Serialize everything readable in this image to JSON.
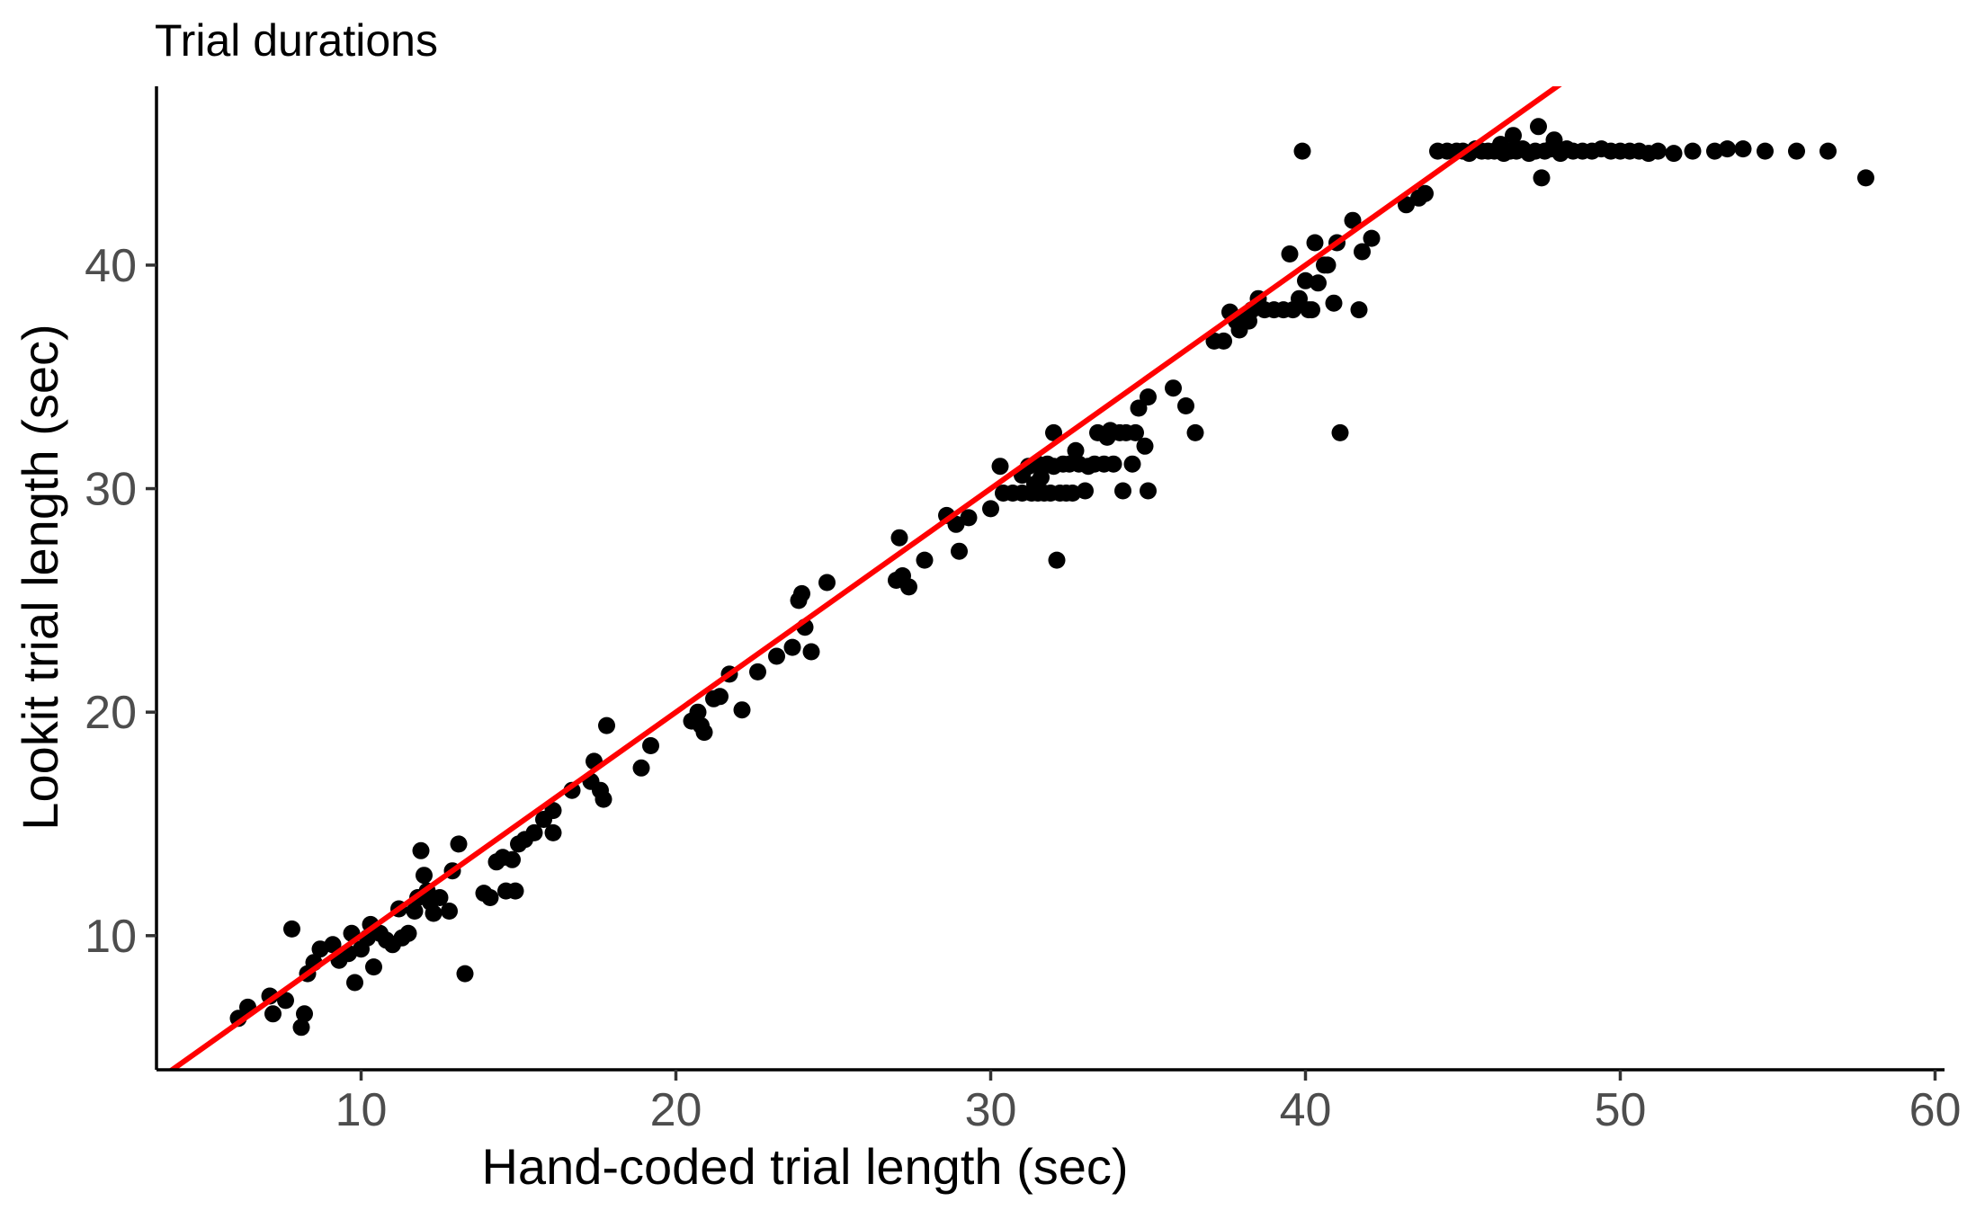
{
  "chart_data": {
    "type": "scatter",
    "title": "Trial durations",
    "xlabel": "Hand-coded trial length (sec)",
    "ylabel": "Lookit trial length (sec)",
    "xlim": [
      3.5,
      60.3
    ],
    "ylim": [
      4.0,
      48.0
    ],
    "xticks": [
      10,
      20,
      30,
      40,
      50,
      60
    ],
    "yticks": [
      10,
      20,
      30,
      40
    ],
    "grid": false,
    "legend": "none",
    "colors": {
      "points": "#000000",
      "fit_line": "#ff0000",
      "axis": "#000000",
      "tick_labels": "#4d4d4d"
    },
    "fit_line": {
      "x": [
        3.5,
        48.3
      ],
      "y": [
        3.5,
        48.3
      ]
    },
    "points": [
      [
        6.1,
        6.3
      ],
      [
        6.4,
        6.8
      ],
      [
        7.1,
        7.3
      ],
      [
        7.2,
        6.5
      ],
      [
        7.6,
        7.1
      ],
      [
        7.8,
        10.3
      ],
      [
        8.1,
        5.9
      ],
      [
        8.2,
        6.5
      ],
      [
        8.3,
        8.3
      ],
      [
        8.5,
        8.8
      ],
      [
        8.7,
        9.4
      ],
      [
        9.1,
        9.6
      ],
      [
        9.3,
        8.9
      ],
      [
        9.6,
        9.2
      ],
      [
        9.7,
        10.1
      ],
      [
        9.8,
        7.9
      ],
      [
        10.0,
        9.4
      ],
      [
        10.2,
        9.9
      ],
      [
        10.3,
        10.5
      ],
      [
        10.4,
        8.6
      ],
      [
        10.6,
        10.1
      ],
      [
        10.8,
        9.8
      ],
      [
        11.0,
        9.6
      ],
      [
        11.2,
        11.2
      ],
      [
        11.3,
        9.9
      ],
      [
        11.5,
        10.1
      ],
      [
        11.7,
        11.1
      ],
      [
        11.8,
        11.7
      ],
      [
        11.9,
        13.8
      ],
      [
        12.0,
        12.7
      ],
      [
        12.1,
        12.0
      ],
      [
        12.2,
        11.5
      ],
      [
        12.3,
        11.0
      ],
      [
        12.5,
        11.7
      ],
      [
        12.8,
        11.1
      ],
      [
        12.9,
        12.9
      ],
      [
        13.1,
        14.1
      ],
      [
        13.3,
        8.3
      ],
      [
        13.9,
        11.9
      ],
      [
        14.1,
        11.7
      ],
      [
        14.3,
        13.3
      ],
      [
        14.5,
        13.5
      ],
      [
        14.6,
        12.0
      ],
      [
        14.8,
        13.4
      ],
      [
        14.9,
        12.0
      ],
      [
        15.0,
        14.1
      ],
      [
        15.2,
        14.3
      ],
      [
        15.5,
        14.6
      ],
      [
        15.8,
        15.2
      ],
      [
        16.1,
        15.6
      ],
      [
        16.1,
        14.6
      ],
      [
        16.7,
        16.5
      ],
      [
        17.3,
        16.9
      ],
      [
        17.4,
        17.8
      ],
      [
        17.6,
        16.5
      ],
      [
        17.7,
        16.1
      ],
      [
        17.8,
        19.4
      ],
      [
        18.9,
        17.5
      ],
      [
        19.2,
        18.5
      ],
      [
        20.5,
        19.6
      ],
      [
        20.7,
        20.0
      ],
      [
        20.8,
        19.4
      ],
      [
        20.9,
        19.1
      ],
      [
        21.2,
        20.6
      ],
      [
        21.4,
        20.7
      ],
      [
        21.7,
        21.7
      ],
      [
        22.1,
        20.1
      ],
      [
        22.6,
        21.8
      ],
      [
        23.2,
        22.5
      ],
      [
        23.7,
        22.9
      ],
      [
        23.9,
        25.0
      ],
      [
        24.0,
        25.3
      ],
      [
        24.1,
        23.8
      ],
      [
        24.3,
        22.7
      ],
      [
        24.8,
        25.8
      ],
      [
        27.0,
        25.9
      ],
      [
        27.1,
        27.8
      ],
      [
        27.2,
        26.1
      ],
      [
        27.4,
        25.6
      ],
      [
        27.9,
        26.8
      ],
      [
        28.6,
        28.8
      ],
      [
        28.9,
        28.4
      ],
      [
        29.0,
        27.2
      ],
      [
        29.3,
        28.7
      ],
      [
        30.0,
        29.1
      ],
      [
        30.3,
        31.0
      ],
      [
        30.4,
        29.8
      ],
      [
        30.7,
        29.8
      ],
      [
        31.0,
        29.8
      ],
      [
        31.0,
        30.6
      ],
      [
        31.2,
        31.0
      ],
      [
        31.3,
        29.8
      ],
      [
        31.4,
        30.2
      ],
      [
        31.5,
        29.8
      ],
      [
        31.5,
        31.1
      ],
      [
        31.6,
        30.5
      ],
      [
        31.7,
        29.8
      ],
      [
        31.8,
        31.1
      ],
      [
        31.9,
        29.8
      ],
      [
        32.0,
        31.0
      ],
      [
        32.0,
        32.5
      ],
      [
        32.1,
        26.8
      ],
      [
        32.2,
        29.8
      ],
      [
        32.3,
        31.1
      ],
      [
        32.4,
        29.8
      ],
      [
        32.5,
        31.1
      ],
      [
        32.6,
        29.8
      ],
      [
        32.7,
        31.7
      ],
      [
        32.8,
        31.1
      ],
      [
        33.0,
        29.9
      ],
      [
        33.1,
        31.0
      ],
      [
        33.3,
        31.1
      ],
      [
        33.4,
        32.5
      ],
      [
        33.6,
        31.1
      ],
      [
        33.7,
        32.3
      ],
      [
        33.8,
        32.6
      ],
      [
        33.9,
        31.1
      ],
      [
        34.1,
        32.5
      ],
      [
        34.2,
        29.9
      ],
      [
        34.3,
        32.5
      ],
      [
        34.5,
        31.1
      ],
      [
        34.6,
        32.5
      ],
      [
        34.7,
        33.6
      ],
      [
        34.9,
        31.9
      ],
      [
        35.0,
        29.9
      ],
      [
        35.0,
        34.1
      ],
      [
        35.8,
        34.5
      ],
      [
        36.2,
        33.7
      ],
      [
        36.5,
        32.5
      ],
      [
        37.1,
        36.6
      ],
      [
        37.4,
        36.6
      ],
      [
        37.6,
        37.9
      ],
      [
        37.8,
        37.5
      ],
      [
        37.9,
        37.1
      ],
      [
        38.0,
        37.6
      ],
      [
        38.2,
        37.5
      ],
      [
        38.3,
        38.0
      ],
      [
        38.5,
        38.5
      ],
      [
        38.7,
        38.0
      ],
      [
        39.0,
        38.0
      ],
      [
        39.3,
        38.0
      ],
      [
        39.5,
        40.5
      ],
      [
        39.6,
        38.0
      ],
      [
        39.8,
        38.5
      ],
      [
        39.9,
        45.1
      ],
      [
        40.0,
        39.3
      ],
      [
        40.1,
        38.0
      ],
      [
        40.2,
        38.0
      ],
      [
        40.3,
        41.0
      ],
      [
        40.4,
        39.2
      ],
      [
        40.6,
        40.0
      ],
      [
        40.7,
        40.0
      ],
      [
        40.9,
        38.3
      ],
      [
        41.0,
        41.0
      ],
      [
        41.1,
        32.5
      ],
      [
        41.5,
        42.0
      ],
      [
        41.7,
        38.0
      ],
      [
        41.8,
        40.6
      ],
      [
        42.1,
        41.2
      ],
      [
        43.2,
        42.7
      ],
      [
        43.6,
        43.0
      ],
      [
        43.8,
        43.2
      ],
      [
        44.2,
        45.1
      ],
      [
        44.5,
        45.1
      ],
      [
        44.8,
        45.1
      ],
      [
        45.0,
        45.1
      ],
      [
        45.2,
        45.0
      ],
      [
        45.4,
        45.2
      ],
      [
        45.6,
        45.1
      ],
      [
        45.8,
        45.1
      ],
      [
        46.0,
        45.1
      ],
      [
        46.2,
        45.4
      ],
      [
        46.3,
        45.0
      ],
      [
        46.5,
        45.1
      ],
      [
        46.6,
        45.8
      ],
      [
        46.7,
        45.1
      ],
      [
        46.9,
        45.2
      ],
      [
        47.1,
        45.0
      ],
      [
        47.3,
        45.1
      ],
      [
        47.4,
        46.2
      ],
      [
        47.5,
        43.9
      ],
      [
        47.6,
        45.1
      ],
      [
        47.8,
        45.2
      ],
      [
        47.9,
        45.6
      ],
      [
        48.1,
        45.0
      ],
      [
        48.3,
        45.2
      ],
      [
        48.5,
        45.1
      ],
      [
        48.8,
        45.1
      ],
      [
        49.1,
        45.1
      ],
      [
        49.4,
        45.2
      ],
      [
        49.7,
        45.1
      ],
      [
        50.0,
        45.1
      ],
      [
        50.3,
        45.1
      ],
      [
        50.6,
        45.1
      ],
      [
        50.9,
        45.0
      ],
      [
        51.2,
        45.1
      ],
      [
        51.7,
        45.0
      ],
      [
        52.3,
        45.1
      ],
      [
        53.0,
        45.1
      ],
      [
        53.4,
        45.2
      ],
      [
        53.9,
        45.2
      ],
      [
        54.6,
        45.1
      ],
      [
        55.6,
        45.1
      ],
      [
        56.6,
        45.1
      ],
      [
        57.8,
        43.9
      ]
    ]
  }
}
